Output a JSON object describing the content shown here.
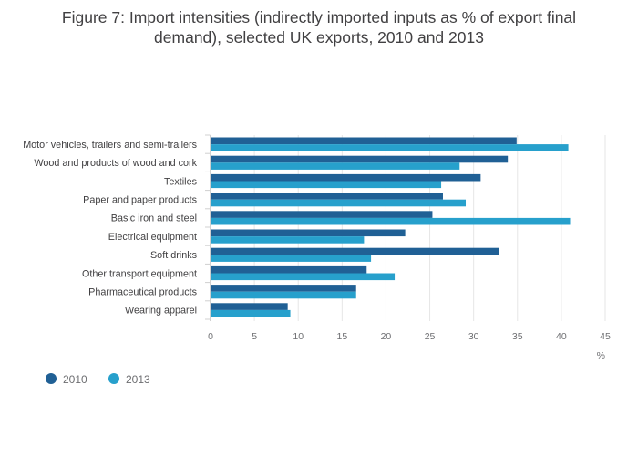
{
  "chart_data": {
    "type": "bar",
    "orientation": "horizontal",
    "title_lines": [
      "Figure 7: Import intensities (indirectly imported inputs as % of export final",
      "demand), selected UK exports, 2010 and 2013"
    ],
    "categories": [
      "Motor vehicles, trailers and semi-trailers",
      "Wood and products of wood and cork",
      "Textiles",
      "Paper and paper products",
      "Basic iron and steel",
      "Electrical equipment",
      "Soft drinks",
      "Other transport equipment",
      "Pharmaceutical products",
      "Wearing apparel"
    ],
    "series": [
      {
        "name": "2010",
        "color": "#206095",
        "values": [
          34.9,
          33.9,
          30.8,
          26.5,
          25.3,
          22.2,
          32.9,
          17.8,
          16.6,
          8.8
        ]
      },
      {
        "name": "2013",
        "color": "#27a0cc",
        "values": [
          40.8,
          28.4,
          26.3,
          29.1,
          41.0,
          17.5,
          18.3,
          21.0,
          16.6,
          9.1
        ]
      }
    ],
    "xlim": [
      0,
      45
    ],
    "xticks": [
      "0",
      "5",
      "10",
      "15",
      "20",
      "25",
      "30",
      "35",
      "40",
      "45"
    ],
    "xlabel": "%",
    "ylabel": "",
    "grid": true,
    "legend_position": "bottom-left"
  }
}
